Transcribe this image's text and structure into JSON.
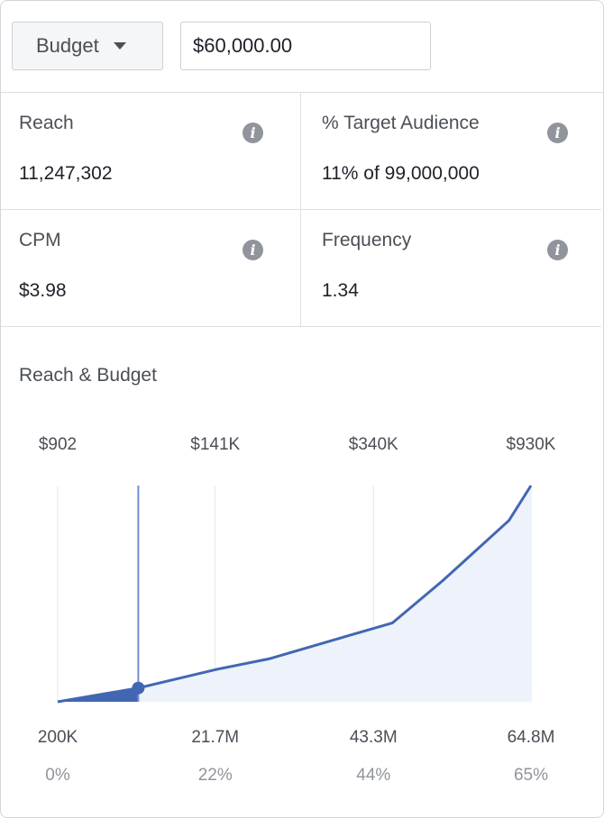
{
  "controls": {
    "objective_label": "Budget",
    "budget_value": "$60,000.00"
  },
  "metrics": [
    {
      "title": "Reach",
      "value": "11,247,302"
    },
    {
      "title": "% Target Audience",
      "value": "11% of 99,000,000"
    },
    {
      "title": "CPM",
      "value": "$3.98"
    },
    {
      "title": "Frequency",
      "value": "1.34"
    }
  ],
  "icons": {
    "info": "info-icon",
    "dropdown": "caret-down-icon"
  },
  "colors": {
    "line": "#4267b2",
    "area": "#eef2fb",
    "marker_line": "#6f8fd6",
    "grid": "#e3e5e8",
    "tick_text": "#4b4f56",
    "percent_text": "#90949c"
  },
  "chart_data": {
    "type": "area",
    "title": "Reach & Budget",
    "xlabel": "",
    "ylabel": "",
    "x_unit": "reach (M)",
    "y_unit": "budget ($K)",
    "x_range": [
      0.2,
      64.8
    ],
    "y_range": [
      0.902,
      930
    ],
    "x_ticks": [
      {
        "value": 0.2,
        "label": "200K",
        "percent": "0%"
      },
      {
        "value": 21.7,
        "label": "21.7M",
        "percent": "22%"
      },
      {
        "value": 43.3,
        "label": "43.3M",
        "percent": "44%"
      },
      {
        "value": 64.8,
        "label": "64.8M",
        "percent": "65%"
      }
    ],
    "top_labels": [
      "$902",
      "$141K",
      "$340K",
      "$930K"
    ],
    "x": [
      0.2,
      11.2,
      22.0,
      29.0,
      45.9,
      52.7,
      61.8,
      64.8
    ],
    "y": [
      0.902,
      60,
      141,
      185,
      340,
      520,
      780,
      930
    ],
    "selected": {
      "x": 11.2,
      "y": 60
    },
    "grid": true
  }
}
